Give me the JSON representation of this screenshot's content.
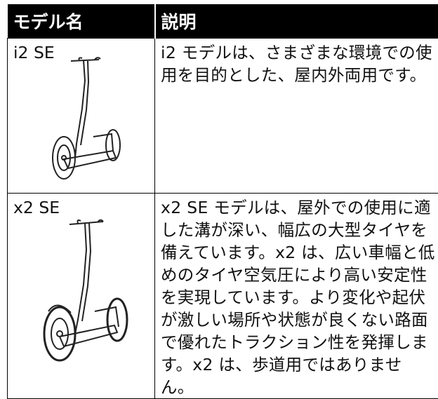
{
  "table": {
    "header": [
      "モデル名",
      "説明"
    ],
    "rows": [
      [
        "i2 SE",
        "i2 モデルは、さまざまな環境での使用を目的とした、屋内外両用です。"
      ],
      [
        "x2 SE",
        "x2 SE モデルは、屋外での使用に適した溝が深い、幅広の大型タイヤを備えています。x2 は、広い車幅と低めのタイヤ空気圧により高い安定性を実現しています。より変化や起伏が激しい場所や状態が良くない路面で優れたトラクション性を発揮します。x2 は、歩道用ではありません。"
      ]
    ]
  }
}
